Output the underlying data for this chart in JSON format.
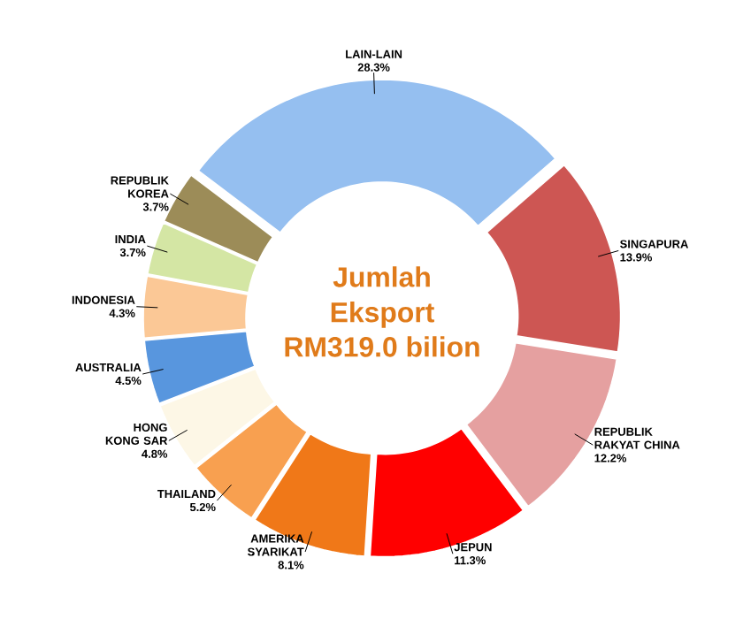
{
  "chart_data": {
    "type": "donut",
    "title": "Jumlah Eksport",
    "subtitle": "RM319.0 bilion",
    "categories": [
      "SINGAPURA",
      "REPUBLIK RAKYAT CHINA",
      "JEPUN",
      "AMERIKA SYARIKAT",
      "THAILAND",
      "HONG KONG SAR",
      "AUSTRALIA",
      "INDONESIA",
      "INDIA",
      "REPUBLIK KOREA",
      "LAIN-LAIN"
    ],
    "values": [
      13.9,
      12.2,
      11.3,
      8.1,
      5.2,
      4.8,
      4.5,
      4.3,
      3.7,
      3.7,
      28.3
    ],
    "value_labels": [
      "13.9%",
      "12.2%",
      "11.3%",
      "8.1%",
      "5.2%",
      "4.8%",
      "4.5%",
      "4.3%",
      "3.7%",
      "3.7%",
      "28.3%"
    ],
    "colors": [
      "#cd5653",
      "#e5a0a0",
      "#ff0000",
      "#f07818",
      "#f8a050",
      "#fdf7e6",
      "#5896de",
      "#fbc896",
      "#d4e6a4",
      "#9c8c58",
      "#95bff0"
    ]
  }
}
